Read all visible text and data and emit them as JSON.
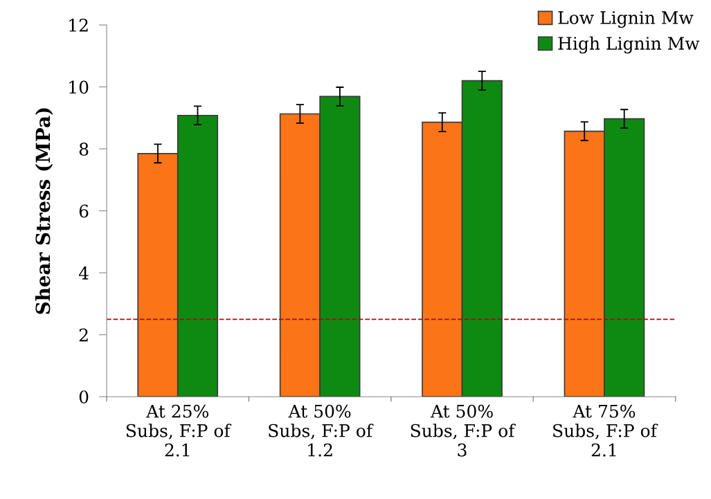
{
  "chart_data": {
    "type": "bar",
    "ylabel": "Shear Stress (MPa)",
    "categories": [
      "At 25%\nSubs, F:P of\n2.1",
      "At 50%\nSubs, F:P of\n1.2",
      "At 50%\nSubs, F:P of\n3",
      "At 75%\nSubs, F:P of\n2.1"
    ],
    "series": [
      {
        "name": "Low Lignin Mw",
        "color": "#fb7417",
        "values": [
          7.85,
          9.13,
          8.86,
          8.57
        ],
        "errors": [
          0.3,
          0.3,
          0.3,
          0.3
        ]
      },
      {
        "name": "High Lignin Mw",
        "color": "#0e8a12",
        "values": [
          9.08,
          9.69,
          10.2,
          8.97
        ],
        "errors": [
          0.3,
          0.3,
          0.3,
          0.3
        ]
      }
    ],
    "ylim": [
      0,
      12
    ],
    "yticks": [
      0,
      2,
      4,
      6,
      8,
      10,
      12
    ],
    "ref_lines": [
      {
        "axis": "y",
        "value": 2.5,
        "color": "#a01010",
        "line_style": "dashed"
      }
    ],
    "legend": "top right",
    "grid": false
  }
}
